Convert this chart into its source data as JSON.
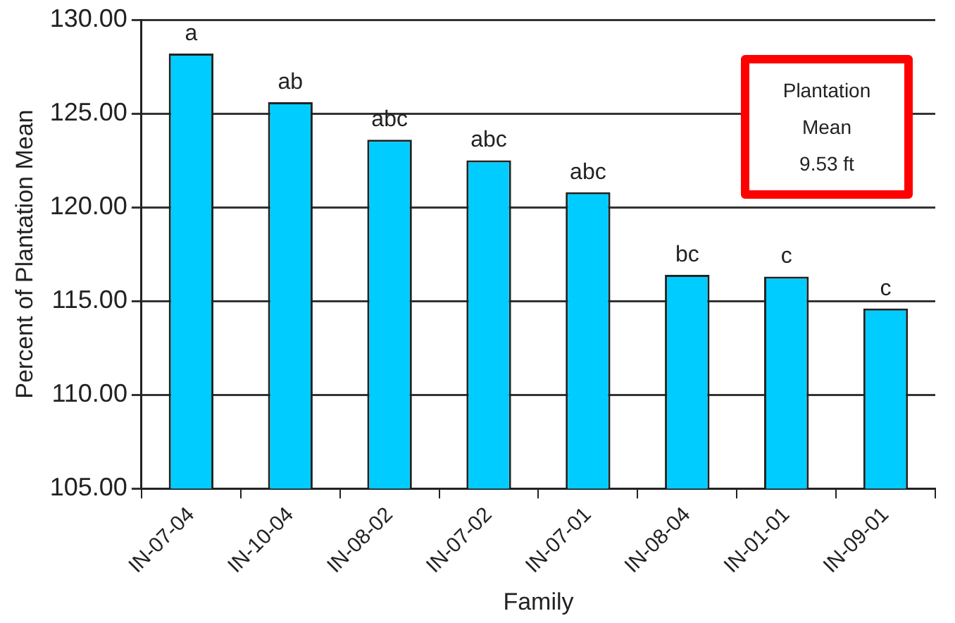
{
  "chart_data": {
    "type": "bar",
    "xlabel": "Family",
    "ylabel": "Percent of Plantation Mean",
    "categories": [
      "IN-07-04",
      "IN-10-04",
      "IN-08-02",
      "IN-07-02",
      "IN-07-01",
      "IN-08-04",
      "IN-01-01",
      "IN-09-01"
    ],
    "values": [
      128.2,
      125.6,
      123.6,
      122.5,
      120.8,
      116.4,
      116.3,
      114.6
    ],
    "color": "#00ccff",
    "ylim": [
      105,
      130
    ],
    "yticks": [
      {
        "value": 105,
        "label": "105.00"
      },
      {
        "value": 110,
        "label": "110.00"
      },
      {
        "value": 115,
        "label": "115.00"
      },
      {
        "value": 120,
        "label": "120.00"
      },
      {
        "value": 125,
        "label": "125.00"
      },
      {
        "value": 130,
        "label": "130.00"
      }
    ],
    "grid": "y",
    "legend": false,
    "annotations": [
      {
        "text": "a",
        "x": "IN-07-04",
        "y": 128.2
      },
      {
        "text": "ab",
        "x": "IN-10-04",
        "y": 125.6
      },
      {
        "text": "abc",
        "x": "IN-08-02",
        "y": 123.6
      },
      {
        "text": "abc",
        "x": "IN-07-02",
        "y": 122.5
      },
      {
        "text": "abc",
        "x": "IN-07-01",
        "y": 120.8
      },
      {
        "text": "bc",
        "x": "IN-08-04",
        "y": 116.4
      },
      {
        "text": "c",
        "x": "IN-01-01",
        "y": 116.3
      },
      {
        "text": "c",
        "x": "IN-09-01",
        "y": 114.6
      },
      "Plantation\nMean\n9.53 ft"
    ]
  }
}
